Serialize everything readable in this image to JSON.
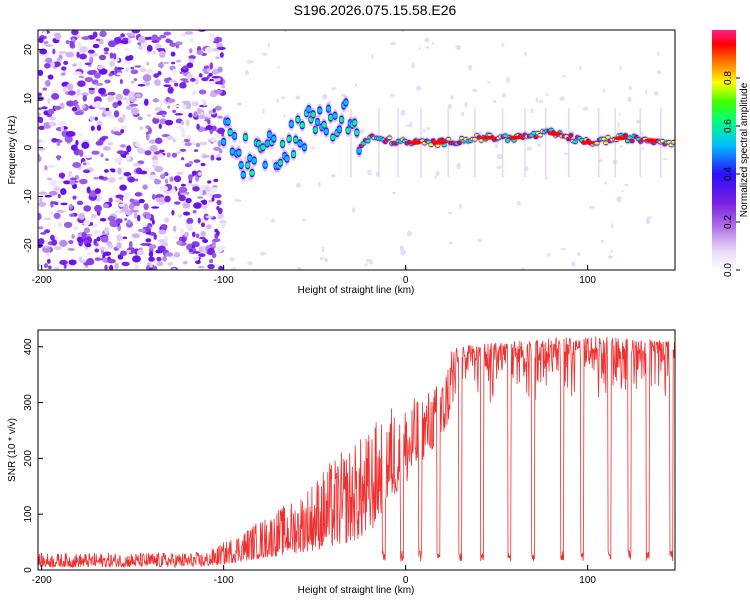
{
  "page": {
    "title": "S196.2026.075.15.58.E26"
  },
  "chart_data": [
    {
      "type": "heatmap",
      "title": "S196.2026.075.15.58.E26",
      "xlabel": "Height of straight line (km)",
      "ylabel": "Frequency (Hz)",
      "xlim": [
        -202,
        148
      ],
      "ylim": [
        -25,
        24
      ],
      "xticks": [
        -200,
        -100,
        0,
        100
      ],
      "yticks": [
        20,
        10,
        0,
        -10,
        -20
      ],
      "colorbar": {
        "label": "Normalized spectral amplitude",
        "range": [
          0,
          1
        ],
        "ticks": [
          0.0,
          0.2,
          0.4,
          0.6,
          0.8
        ],
        "colors": [
          "#ffffff",
          "#e8d8f5",
          "#b070e8",
          "#7a1ee0",
          "#2a10ff",
          "#00c0ff",
          "#00ff80",
          "#40ff00",
          "#ffff00",
          "#ff8000",
          "#ff0000",
          "#ff2090"
        ]
      },
      "ridge": {
        "description_points_km": [
          -100,
          -90,
          -80,
          -70,
          -60,
          -50,
          -40,
          -30,
          -25,
          -20,
          0,
          20,
          40,
          60,
          80,
          100,
          120,
          148
        ],
        "frequency_hz": [
          3,
          -2,
          -1,
          0,
          3,
          5,
          6,
          6,
          0,
          2,
          1,
          1,
          2,
          2,
          3,
          1,
          2,
          1
        ]
      }
    },
    {
      "type": "line",
      "xlabel": "Height of straight line (km)",
      "ylabel": "SNR (10 * v/v)",
      "xlim": [
        -202,
        148
      ],
      "ylim": [
        0,
        430
      ],
      "xticks": [
        -200,
        -100,
        0,
        100
      ],
      "yticks": [
        0,
        100,
        200,
        300,
        400
      ],
      "series": [
        {
          "name": "SNR",
          "color": "#f03030",
          "envelope": {
            "x": [
              -202,
              -110,
              -100,
              -80,
              -60,
              -40,
              -20,
              -10,
              0,
              10,
              20,
              25,
              60,
              100,
              148
            ],
            "low": [
              5,
              5,
              10,
              20,
              30,
              40,
              60,
              120,
              150,
              200,
              230,
              280,
              290,
              300,
              300
            ],
            "high": [
              30,
              32,
              50,
              90,
              130,
              200,
              250,
              300,
              300,
              320,
              340,
              400,
              410,
              420,
              410
            ]
          },
          "dropouts_km": [
            -12,
            -2,
            8,
            18,
            30,
            42,
            57,
            70,
            86,
            97,
            112,
            123,
            133,
            146
          ]
        }
      ]
    }
  ]
}
